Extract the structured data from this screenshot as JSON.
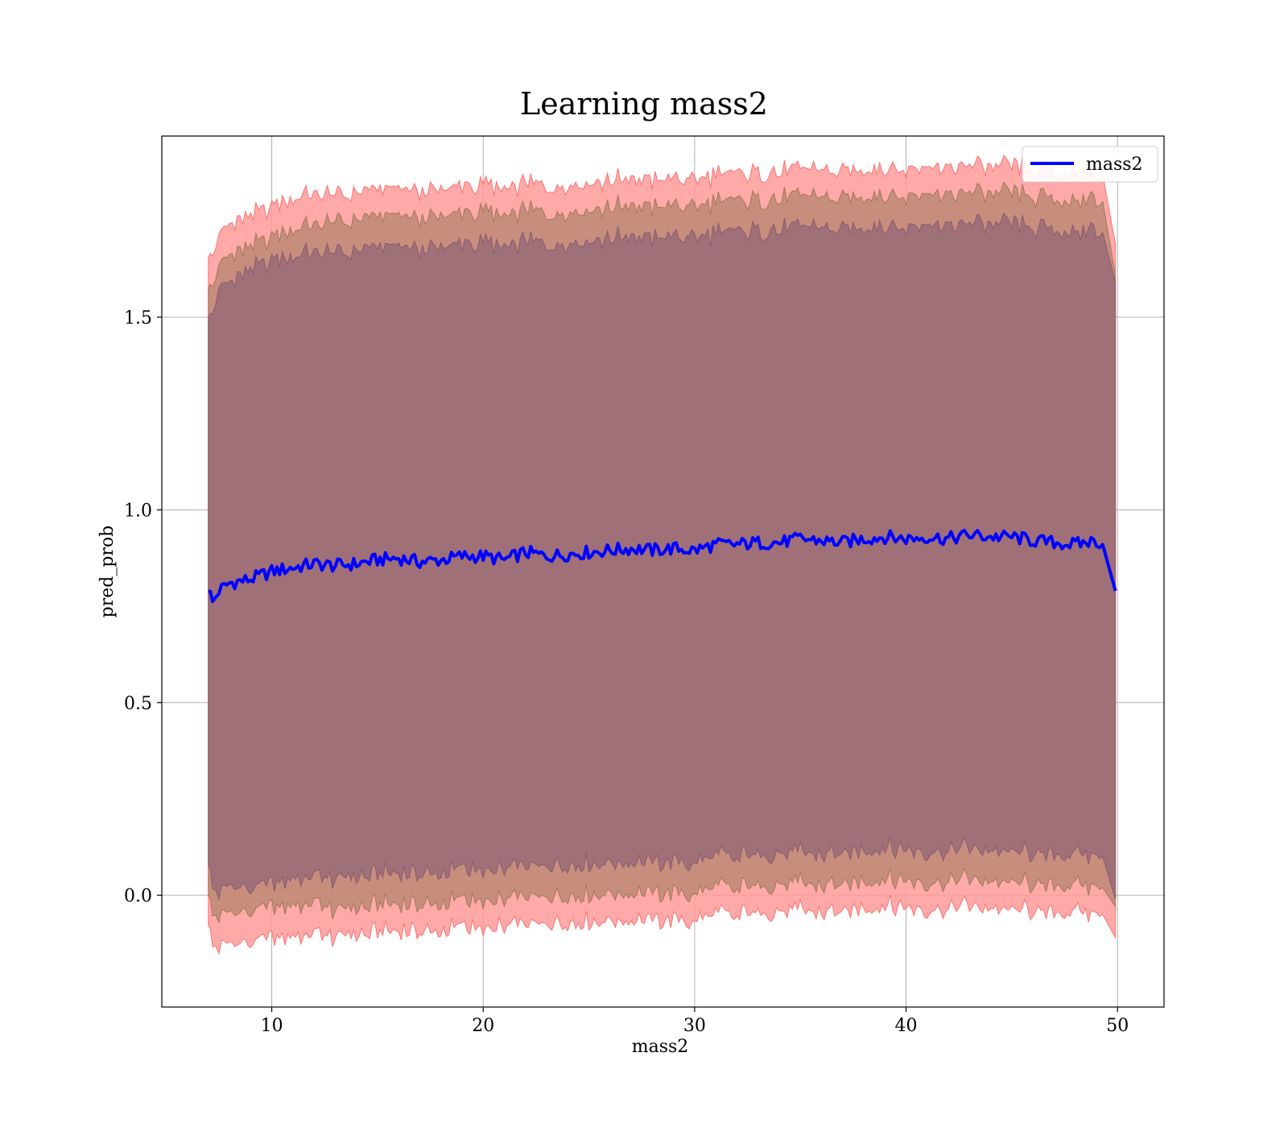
{
  "chart_data": {
    "type": "line",
    "title": "Learning mass2",
    "xlabel": "mass2",
    "ylabel": "pred_prob",
    "xlim": [
      4.8,
      52.2
    ],
    "ylim": [
      -0.29,
      1.97
    ],
    "xticks": [
      10,
      20,
      30,
      40,
      50
    ],
    "yticks": [
      0.0,
      0.5,
      1.0,
      1.5
    ],
    "xtick_labels": [
      "10",
      "20",
      "30",
      "40",
      "50"
    ],
    "ytick_labels": [
      "0.0",
      "0.5",
      "1.0",
      "1.5"
    ],
    "grid": true,
    "legend": {
      "position": "top-right",
      "entries": [
        "mass2"
      ]
    },
    "series": [
      {
        "name": "mass2",
        "color": "#0000ff",
        "x": [
          7.0,
          7.2,
          7.5,
          8.0,
          9.0,
          10.0,
          11.0,
          12.0,
          13.0,
          14.0,
          15.0,
          16.0,
          17.0,
          18.0,
          19.0,
          20.0,
          21.0,
          22.0,
          23.0,
          24.0,
          25.0,
          26.0,
          27.0,
          28.0,
          29.0,
          30.0,
          31.0,
          32.0,
          33.0,
          34.0,
          35.0,
          36.0,
          37.0,
          38.0,
          39.0,
          40.0,
          41.0,
          42.0,
          43.0,
          44.0,
          45.0,
          46.0,
          47.0,
          48.0,
          49.0,
          49.3,
          49.9
        ],
        "y": [
          0.8,
          0.76,
          0.79,
          0.81,
          0.82,
          0.84,
          0.85,
          0.86,
          0.855,
          0.86,
          0.87,
          0.875,
          0.865,
          0.87,
          0.88,
          0.88,
          0.87,
          0.89,
          0.88,
          0.885,
          0.89,
          0.895,
          0.9,
          0.895,
          0.9,
          0.895,
          0.91,
          0.91,
          0.915,
          0.915,
          0.925,
          0.92,
          0.915,
          0.925,
          0.93,
          0.925,
          0.93,
          0.925,
          0.935,
          0.93,
          0.93,
          0.92,
          0.915,
          0.91,
          0.92,
          0.91,
          0.79
        ],
        "band_1sd": [
          0.72,
          0.75,
          0.78,
          0.78,
          0.8,
          0.81,
          0.81,
          0.81,
          0.81,
          0.81,
          0.81,
          0.81,
          0.81,
          0.81,
          0.81,
          0.81,
          0.81,
          0.81,
          0.81,
          0.81,
          0.81,
          0.81,
          0.81,
          0.81,
          0.81,
          0.81,
          0.81,
          0.81,
          0.81,
          0.81,
          0.81,
          0.81,
          0.81,
          0.81,
          0.81,
          0.81,
          0.81,
          0.81,
          0.81,
          0.81,
          0.81,
          0.81,
          0.81,
          0.81,
          0.81,
          0.81,
          0.8
        ],
        "band_2sd": [
          0.8,
          0.82,
          0.84,
          0.85,
          0.86,
          0.87,
          0.88,
          0.88,
          0.89,
          0.89,
          0.89,
          0.89,
          0.89,
          0.89,
          0.89,
          0.89,
          0.89,
          0.89,
          0.89,
          0.89,
          0.89,
          0.89,
          0.89,
          0.89,
          0.89,
          0.89,
          0.89,
          0.89,
          0.89,
          0.89,
          0.89,
          0.89,
          0.89,
          0.89,
          0.89,
          0.89,
          0.89,
          0.89,
          0.89,
          0.89,
          0.89,
          0.89,
          0.89,
          0.89,
          0.89,
          0.89,
          0.82
        ],
        "band_3sd": [
          0.88,
          0.9,
          0.92,
          0.93,
          0.94,
          0.95,
          0.96,
          0.96,
          0.96,
          0.96,
          0.96,
          0.96,
          0.96,
          0.96,
          0.96,
          0.96,
          0.96,
          0.96,
          0.96,
          0.96,
          0.96,
          0.96,
          0.96,
          0.96,
          0.96,
          0.96,
          0.96,
          0.96,
          0.96,
          0.96,
          0.96,
          0.96,
          0.96,
          0.96,
          0.96,
          0.96,
          0.96,
          0.96,
          0.96,
          0.96,
          0.96,
          0.96,
          0.96,
          0.96,
          0.96,
          0.96,
          0.9
        ]
      }
    ],
    "band_colors": {
      "outer": "#ff9a9a",
      "middle": "#c48c7a",
      "inner": "#a07078"
    }
  }
}
